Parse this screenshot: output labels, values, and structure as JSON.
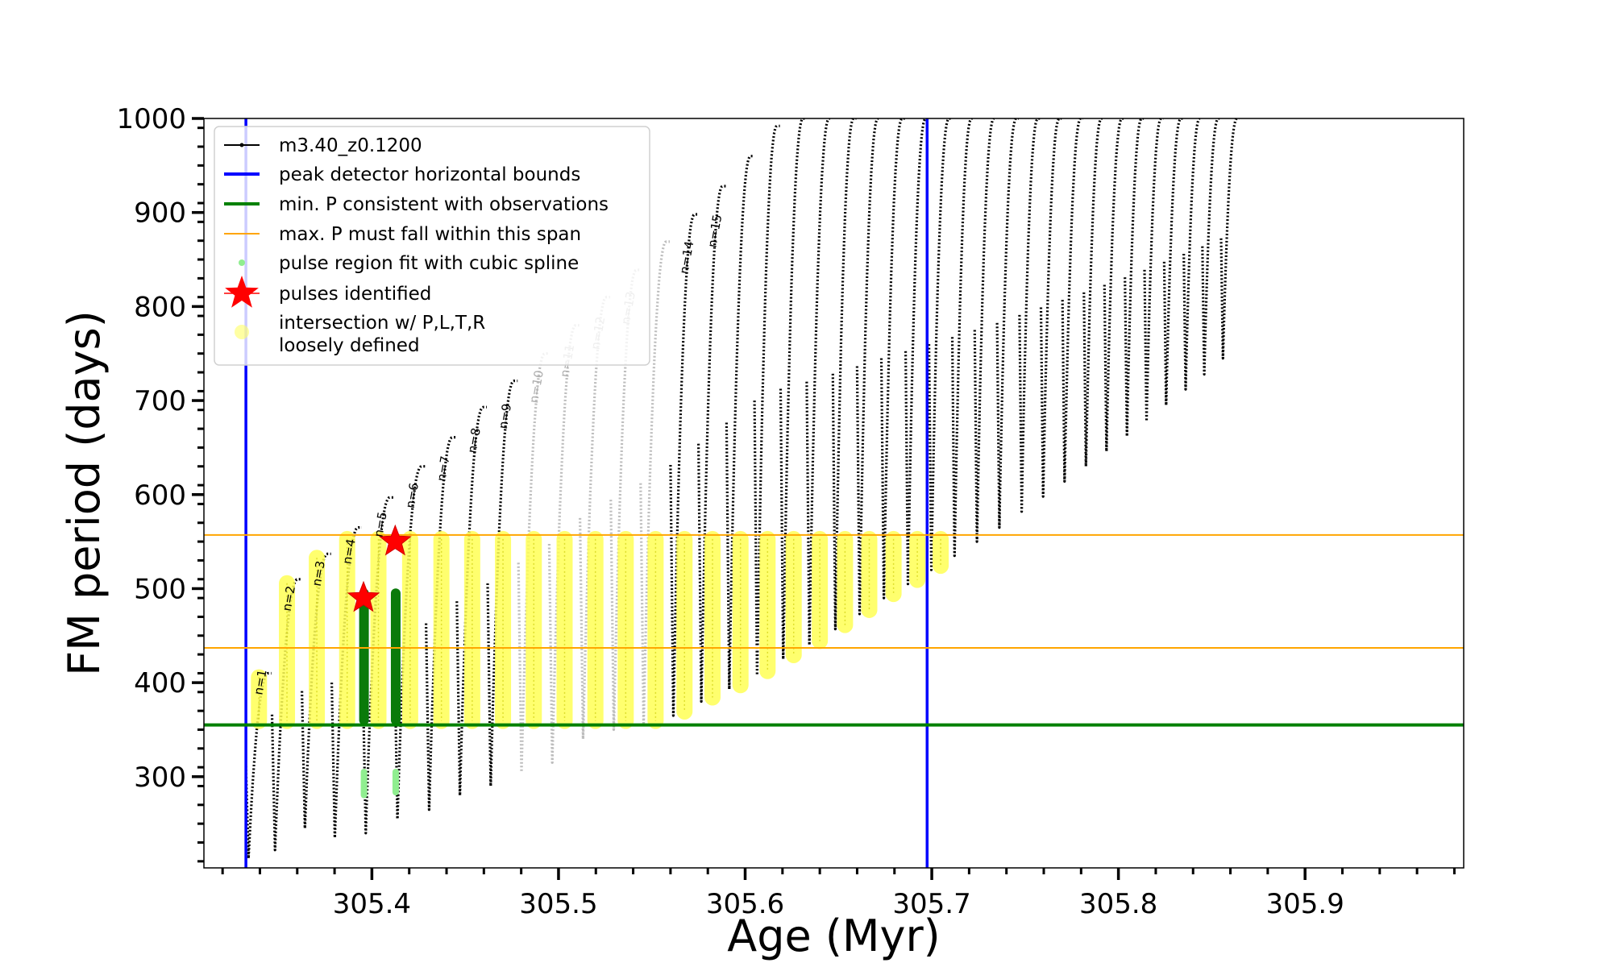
{
  "chart_data": {
    "type": "scatter",
    "xlabel": "Age (Myr)",
    "ylabel": "FM period (days)",
    "xlim": [
      305.31,
      305.985
    ],
    "ylim": [
      203,
      1000
    ],
    "x_ticks": [
      305.4,
      305.5,
      305.6,
      305.7,
      305.8,
      305.9
    ],
    "x_tick_labels": [
      "305.4",
      "305.5",
      "305.6",
      "305.7",
      "305.8",
      "305.9"
    ],
    "y_ticks": [
      300,
      400,
      500,
      600,
      700,
      800,
      900,
      1000
    ],
    "y_tick_labels": [
      "300",
      "400",
      "500",
      "600",
      "700",
      "800",
      "900",
      "1000"
    ],
    "grid": false,
    "legend_placement": "top-left",
    "legend": [
      {
        "label": "m3.40_z0.1200",
        "kind": "line-marker",
        "color": "#000000"
      },
      {
        "label": "peak detector horizontal bounds",
        "kind": "line",
        "color": "#0000ff"
      },
      {
        "label": "min. P consistent with observations",
        "kind": "line",
        "color": "#008000"
      },
      {
        "label": "max. P must fall within this span",
        "kind": "thin-line",
        "color": "#ffa500"
      },
      {
        "label": "pulse region fit with cubic spline",
        "kind": "dot",
        "color": "#90ee90"
      },
      {
        "label": "pulses identified",
        "kind": "star",
        "color": "#ff0000"
      },
      {
        "label": "intersection w/ P,L,T,R\nloosely defined",
        "kind": "big-dot",
        "color": "#ffff66"
      }
    ],
    "vertical_lines": [
      {
        "x": 305.3325,
        "color": "#0000ff"
      },
      {
        "x": 305.6975,
        "color": "#0000ff"
      }
    ],
    "horizontal_lines": [
      {
        "y": 355,
        "color": "#008000"
      },
      {
        "y": 437,
        "color": "#ffa500"
      },
      {
        "y": 557,
        "color": "#ffa500"
      }
    ],
    "pulses": [
      {
        "t0": 305.3325,
        "t1": 305.3465,
        "min": 213,
        "peak": 410,
        "label": "n=1",
        "gray": false
      },
      {
        "t0": 305.3465,
        "t1": 305.3625,
        "min": 222,
        "peak": 510,
        "label": "n=2",
        "gray": false
      },
      {
        "t0": 305.3625,
        "t1": 305.3785,
        "min": 245,
        "peak": 537,
        "label": "n=3",
        "gray": false
      },
      {
        "t0": 305.3785,
        "t1": 305.395,
        "min": 235,
        "peak": 565,
        "label": "n=4",
        "gray": false
      },
      {
        "t0": 305.395,
        "t1": 305.412,
        "min": 240,
        "peak": 597,
        "label": "n=5",
        "gray": false
      },
      {
        "t0": 305.412,
        "t1": 305.429,
        "min": 255,
        "peak": 630,
        "label": "n=6",
        "gray": false
      },
      {
        "t0": 305.429,
        "t1": 305.4455,
        "min": 265,
        "peak": 661,
        "label": "n=7",
        "gray": false
      },
      {
        "t0": 305.4455,
        "t1": 305.462,
        "min": 280,
        "peak": 693,
        "label": "n=8",
        "gray": false
      },
      {
        "t0": 305.462,
        "t1": 305.4785,
        "min": 290,
        "peak": 721,
        "label": "n=9",
        "gray": false
      },
      {
        "t0": 305.4785,
        "t1": 305.495,
        "min": 305,
        "peak": 750,
        "label": "n=10",
        "gray": true
      },
      {
        "t0": 305.495,
        "t1": 305.5115,
        "min": 315,
        "peak": 780,
        "label": "n=11",
        "gray": true
      },
      {
        "t0": 305.5115,
        "t1": 305.528,
        "min": 340,
        "peak": 810,
        "label": "n=12",
        "gray": true
      },
      {
        "t0": 305.528,
        "t1": 305.544,
        "min": 350,
        "peak": 839,
        "label": "n=13",
        "gray": true
      },
      {
        "t0": 305.544,
        "t1": 305.56,
        "min": 355,
        "peak": 869,
        "label": "",
        "gray": true
      },
      {
        "t0": 305.56,
        "t1": 305.575,
        "min": 365,
        "peak": 898,
        "label": "n=14",
        "gray": false
      },
      {
        "t0": 305.575,
        "t1": 305.59,
        "min": 380,
        "peak": 928,
        "label": "n=15",
        "gray": false
      },
      {
        "t0": 305.59,
        "t1": 305.605,
        "min": 393,
        "peak": 960,
        "label": "",
        "gray": false
      },
      {
        "t0": 305.605,
        "t1": 305.619,
        "min": 408,
        "peak": 992,
        "label": "",
        "gray": false
      },
      {
        "t0": 305.619,
        "t1": 305.633,
        "min": 425,
        "peak": 1000,
        "label": "",
        "gray": false
      },
      {
        "t0": 305.633,
        "t1": 305.647,
        "min": 440,
        "peak": 1000,
        "label": "",
        "gray": false
      },
      {
        "t0": 305.647,
        "t1": 305.66,
        "min": 457,
        "peak": 1000,
        "label": "",
        "gray": false
      },
      {
        "t0": 305.66,
        "t1": 305.673,
        "min": 473,
        "peak": 1000,
        "label": "",
        "gray": false
      },
      {
        "t0": 305.673,
        "t1": 305.686,
        "min": 490,
        "peak": 1000,
        "label": "",
        "gray": false
      },
      {
        "t0": 305.686,
        "t1": 305.6985,
        "min": 505,
        "peak": 1000,
        "label": "",
        "gray": false
      },
      {
        "t0": 305.6985,
        "t1": 305.711,
        "min": 520,
        "peak": 1000,
        "label": "",
        "gray": false
      },
      {
        "t0": 305.711,
        "t1": 305.723,
        "min": 535,
        "peak": 1000,
        "label": "",
        "gray": false
      },
      {
        "t0": 305.723,
        "t1": 305.735,
        "min": 550,
        "peak": 1000,
        "label": "",
        "gray": false
      },
      {
        "t0": 305.735,
        "t1": 305.747,
        "min": 565,
        "peak": 1000,
        "label": "",
        "gray": false
      },
      {
        "t0": 305.747,
        "t1": 305.7585,
        "min": 582,
        "peak": 1000,
        "label": "",
        "gray": false
      },
      {
        "t0": 305.7585,
        "t1": 305.77,
        "min": 598,
        "peak": 1000,
        "label": "",
        "gray": false
      },
      {
        "t0": 305.77,
        "t1": 305.7815,
        "min": 614,
        "peak": 1000,
        "label": "",
        "gray": false
      },
      {
        "t0": 305.7815,
        "t1": 305.7925,
        "min": 630,
        "peak": 1000,
        "label": "",
        "gray": false
      },
      {
        "t0": 305.7925,
        "t1": 305.8035,
        "min": 646,
        "peak": 1000,
        "label": "",
        "gray": false
      },
      {
        "t0": 305.8035,
        "t1": 305.814,
        "min": 662,
        "peak": 1000,
        "label": "",
        "gray": false
      },
      {
        "t0": 305.814,
        "t1": 305.8245,
        "min": 678,
        "peak": 1000,
        "label": "",
        "gray": false
      },
      {
        "t0": 305.8245,
        "t1": 305.835,
        "min": 695,
        "peak": 1000,
        "label": "",
        "gray": false
      },
      {
        "t0": 305.835,
        "t1": 305.845,
        "min": 712,
        "peak": 1000,
        "label": "",
        "gray": false
      },
      {
        "t0": 305.845,
        "t1": 305.855,
        "min": 728,
        "peak": 1000,
        "label": "",
        "gray": false
      },
      {
        "t0": 305.855,
        "t1": 305.865,
        "min": 745,
        "peak": 1000,
        "label": "",
        "gray": false
      }
    ],
    "spline_fit_pulses": [
      5,
      6
    ],
    "stars": [
      {
        "x": 305.3955,
        "y": 490
      },
      {
        "x": 305.4125,
        "y": 550
      }
    ],
    "yellow_min_y": 355,
    "yellow_max_y": 557
  }
}
